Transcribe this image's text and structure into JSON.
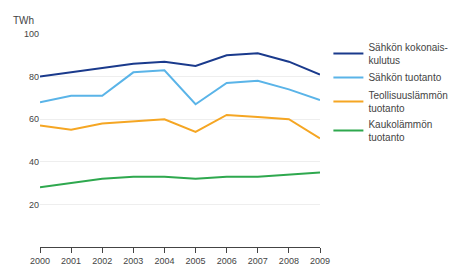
{
  "chart_data": {
    "type": "line",
    "ylabel": "TWh",
    "x": [
      2000,
      2001,
      2002,
      2003,
      2004,
      2005,
      2006,
      2007,
      2008,
      2009
    ],
    "series": [
      {
        "name": "Sähkön kokonais-\nkulutus",
        "color": "#1a3a8c",
        "values": [
          80,
          82,
          84,
          86,
          87,
          85,
          90,
          91,
          87,
          81
        ]
      },
      {
        "name": "Sähkön tuotanto",
        "color": "#5ab4e8",
        "values": [
          68,
          71,
          71,
          82,
          83,
          67,
          77,
          78,
          74,
          69
        ]
      },
      {
        "name": "Teollisuuslämmön\ntuotanto",
        "color": "#f5a623",
        "values": [
          57,
          55,
          58,
          59,
          60,
          54,
          62,
          61,
          60,
          51
        ]
      },
      {
        "name": "Kaukolämmön\ntuotanto",
        "color": "#2ea84e",
        "values": [
          28,
          30,
          32,
          33,
          33,
          32,
          33,
          33,
          34,
          35
        ]
      }
    ],
    "xlim": [
      2000,
      2009
    ],
    "xticks": [
      2000,
      2001,
      2002,
      2003,
      2004,
      2005,
      2006,
      2007,
      2008,
      2009
    ],
    "ylim": [
      0,
      100
    ],
    "yticks": [
      20,
      40,
      60,
      80,
      100
    ],
    "grid": true,
    "legend": "right",
    "line_style": "solid"
  }
}
